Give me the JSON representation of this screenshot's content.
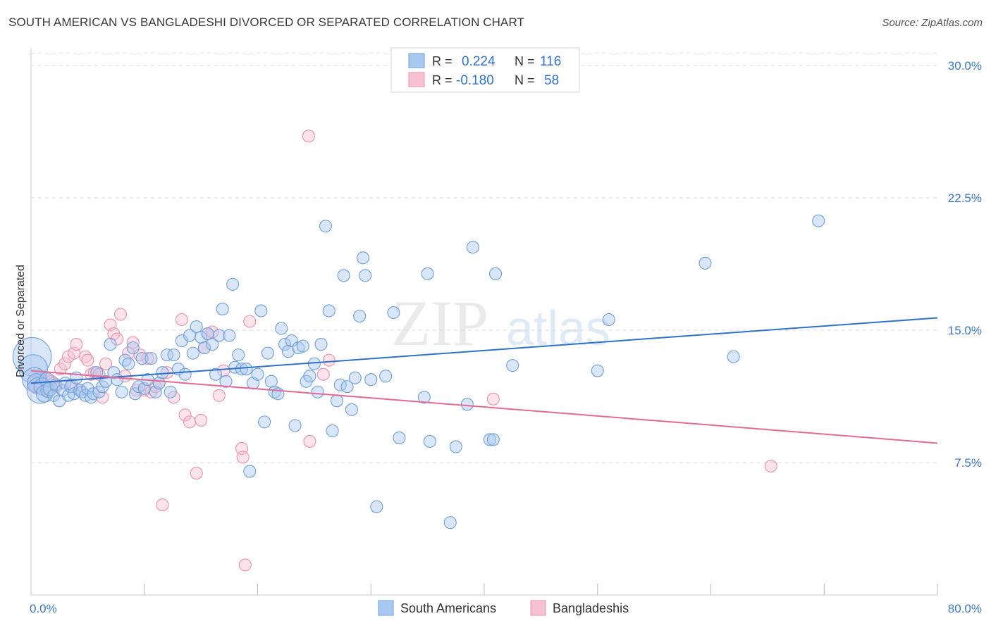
{
  "header": {
    "title": "SOUTH AMERICAN VS BANGLADESHI DIVORCED OR SEPARATED CORRELATION CHART",
    "source": "Source: ZipAtlas.com"
  },
  "watermark": {
    "zip": "ZIP",
    "atlas": "atlas"
  },
  "stats": [
    {
      "r_label": "R =",
      "r_value": "0.224",
      "n_label": "N =",
      "n_value": "116"
    },
    {
      "r_label": "R =",
      "r_value": "-0.180",
      "n_label": "N =",
      "n_value": "58"
    }
  ],
  "chart_data": {
    "type": "scatter",
    "xlabel": "",
    "ylabel": "Divorced or Separated",
    "xlim": [
      0,
      80
    ],
    "ylim": [
      0,
      31
    ],
    "x_tick_labels": [
      "0.0%",
      "80.0%"
    ],
    "y_ticks": [
      7.5,
      15,
      22.5,
      30
    ],
    "y_tick_labels": [
      "7.5%",
      "15.0%",
      "22.5%",
      "30.0%"
    ],
    "grid": true,
    "legend": [
      "South Americans",
      "Bangladeshis"
    ],
    "colors": {
      "south_fill": "#a9c8f0",
      "south_stroke": "#6f9fd8",
      "south_line": "#2f72cc",
      "bangla_fill": "#f7c0d3",
      "bangla_stroke": "#ea90b0",
      "bangla_line": "#e46a94",
      "tick_text": "#3b78c9"
    },
    "series": [
      {
        "name": "South Americans",
        "trend": {
          "x": [
            0,
            80
          ],
          "y": [
            12.0,
            15.7
          ]
        },
        "points": [
          [
            0.1,
            13.5,
            32
          ],
          [
            0.2,
            12.8,
            24
          ],
          [
            0.3,
            12.2,
            20
          ],
          [
            0.5,
            12.0,
            16
          ],
          [
            0.8,
            11.6,
            22
          ],
          [
            1.0,
            11.8,
            14
          ],
          [
            1.2,
            11.4,
            14
          ],
          [
            1.4,
            12.2,
            12
          ],
          [
            1.5,
            11.6,
            12
          ],
          [
            1.7,
            11.7,
            12
          ],
          [
            2.0,
            11.3,
            10
          ],
          [
            2.2,
            11.9,
            10
          ],
          [
            2.5,
            11.0,
            10
          ],
          [
            2.8,
            11.6,
            10
          ],
          [
            3.0,
            12.0,
            10
          ],
          [
            3.3,
            11.3,
            10
          ],
          [
            3.5,
            11.8,
            10
          ],
          [
            3.8,
            11.4,
            10
          ],
          [
            4.0,
            12.3,
            10
          ],
          [
            4.3,
            11.6,
            10
          ],
          [
            4.5,
            11.5,
            10
          ],
          [
            4.8,
            11.3,
            10
          ],
          [
            5.0,
            11.7,
            10
          ],
          [
            5.3,
            11.2,
            10
          ],
          [
            5.5,
            11.4,
            10
          ],
          [
            5.8,
            12.6,
            10
          ],
          [
            6.0,
            11.5,
            10
          ],
          [
            6.3,
            11.8,
            10
          ],
          [
            6.6,
            12.1,
            10
          ],
          [
            7.0,
            14.2,
            10
          ],
          [
            7.3,
            12.6,
            10
          ],
          [
            7.6,
            12.2,
            10
          ],
          [
            8.0,
            11.5,
            10
          ],
          [
            8.3,
            13.3,
            10
          ],
          [
            8.6,
            13.1,
            10
          ],
          [
            9.0,
            14.0,
            10
          ],
          [
            9.2,
            11.4,
            10
          ],
          [
            9.5,
            11.8,
            10
          ],
          [
            9.8,
            13.4,
            10
          ],
          [
            10.0,
            11.7,
            10
          ],
          [
            10.3,
            12.2,
            10
          ],
          [
            10.6,
            13.4,
            10
          ],
          [
            11.0,
            11.5,
            10
          ],
          [
            11.3,
            12.0,
            10
          ],
          [
            11.6,
            12.6,
            10
          ],
          [
            12.0,
            13.6,
            10
          ],
          [
            12.3,
            11.5,
            10
          ],
          [
            12.6,
            13.6,
            10
          ],
          [
            13.0,
            12.8,
            10
          ],
          [
            13.3,
            14.4,
            10
          ],
          [
            13.6,
            12.5,
            10
          ],
          [
            14.0,
            14.7,
            10
          ],
          [
            14.3,
            13.7,
            10
          ],
          [
            14.6,
            15.2,
            10
          ],
          [
            15.0,
            14.6,
            10
          ],
          [
            15.3,
            14.0,
            10
          ],
          [
            15.6,
            14.8,
            10
          ],
          [
            16.0,
            14.2,
            10
          ],
          [
            16.3,
            12.5,
            10
          ],
          [
            16.6,
            14.7,
            10
          ],
          [
            16.9,
            16.2,
            10
          ],
          [
            17.2,
            12.1,
            10
          ],
          [
            17.5,
            14.7,
            10
          ],
          [
            17.8,
            17.6,
            10
          ],
          [
            18.0,
            12.9,
            10
          ],
          [
            18.3,
            13.6,
            10
          ],
          [
            18.6,
            12.8,
            10
          ],
          [
            19.0,
            12.8,
            10
          ],
          [
            19.3,
            7.0,
            10
          ],
          [
            19.6,
            12.0,
            10
          ],
          [
            20.0,
            12.5,
            10
          ],
          [
            20.3,
            16.1,
            10
          ],
          [
            20.6,
            9.8,
            10
          ],
          [
            20.9,
            13.7,
            10
          ],
          [
            21.2,
            12.1,
            10
          ],
          [
            21.5,
            11.5,
            10
          ],
          [
            21.8,
            11.4,
            10
          ],
          [
            22.1,
            15.1,
            10
          ],
          [
            22.4,
            14.2,
            10
          ],
          [
            22.7,
            13.8,
            10
          ],
          [
            23.0,
            14.4,
            10
          ],
          [
            23.3,
            9.6,
            10
          ],
          [
            23.6,
            14.0,
            10
          ],
          [
            24.0,
            14.1,
            10
          ],
          [
            24.3,
            12.1,
            10
          ],
          [
            24.6,
            12.4,
            10
          ],
          [
            25.0,
            13.1,
            10
          ],
          [
            25.3,
            11.5,
            10
          ],
          [
            25.6,
            14.2,
            10
          ],
          [
            26.0,
            20.9,
            10
          ],
          [
            26.3,
            16.1,
            10
          ],
          [
            26.6,
            9.3,
            10
          ],
          [
            27.0,
            11.0,
            10
          ],
          [
            27.3,
            11.9,
            10
          ],
          [
            27.6,
            18.1,
            10
          ],
          [
            27.9,
            11.8,
            10
          ],
          [
            28.3,
            10.5,
            10
          ],
          [
            28.6,
            12.3,
            10
          ],
          [
            29.0,
            15.8,
            10
          ],
          [
            29.3,
            19.1,
            10
          ],
          [
            29.5,
            18.1,
            10
          ],
          [
            30.0,
            12.2,
            10
          ],
          [
            30.5,
            5.0,
            10
          ],
          [
            31.3,
            12.4,
            10
          ],
          [
            32.0,
            16.0,
            10
          ],
          [
            32.5,
            8.9,
            10
          ],
          [
            34.7,
            11.2,
            10
          ],
          [
            35.0,
            18.2,
            10
          ],
          [
            35.2,
            8.7,
            10
          ],
          [
            37.0,
            4.1,
            10
          ],
          [
            37.5,
            8.4,
            10
          ],
          [
            38.5,
            10.8,
            10
          ],
          [
            39.0,
            19.7,
            10
          ],
          [
            40.5,
            8.8,
            10
          ],
          [
            40.8,
            8.8,
            10
          ],
          [
            41.0,
            18.2,
            10
          ],
          [
            42.5,
            13.0,
            10
          ],
          [
            50.0,
            12.7,
            10
          ],
          [
            51.0,
            15.6,
            10
          ],
          [
            59.5,
            18.8,
            10
          ],
          [
            62.0,
            13.5,
            10
          ],
          [
            69.5,
            21.2,
            10
          ]
        ]
      },
      {
        "name": "Bangladeshis",
        "trend": {
          "x": [
            0,
            80
          ],
          "y": [
            12.7,
            8.6
          ]
        },
        "points": [
          [
            0.3,
            12.0,
            12
          ],
          [
            0.5,
            11.8,
            12
          ],
          [
            0.8,
            12.3,
            12
          ],
          [
            1.0,
            11.9,
            12
          ],
          [
            1.2,
            12.2,
            12
          ],
          [
            1.5,
            11.5,
            10
          ],
          [
            1.8,
            12.1,
            10
          ],
          [
            2.0,
            12.0,
            10
          ],
          [
            2.2,
            11.8,
            10
          ],
          [
            2.6,
            12.8,
            10
          ],
          [
            3.0,
            13.1,
            10
          ],
          [
            3.3,
            13.5,
            10
          ],
          [
            3.6,
            11.9,
            10
          ],
          [
            3.8,
            13.7,
            10
          ],
          [
            4.0,
            14.2,
            10
          ],
          [
            4.3,
            11.6,
            10
          ],
          [
            4.8,
            13.5,
            10
          ],
          [
            5.0,
            13.3,
            10
          ],
          [
            5.3,
            12.5,
            10
          ],
          [
            5.6,
            12.6,
            10
          ],
          [
            6.0,
            12.5,
            10
          ],
          [
            6.3,
            11.2,
            10
          ],
          [
            6.6,
            13.1,
            10
          ],
          [
            7.0,
            15.3,
            10
          ],
          [
            7.3,
            14.8,
            10
          ],
          [
            7.6,
            14.5,
            10
          ],
          [
            7.9,
            15.9,
            10
          ],
          [
            8.3,
            12.4,
            10
          ],
          [
            8.6,
            13.7,
            10
          ],
          [
            9.0,
            14.3,
            10
          ],
          [
            9.3,
            11.6,
            10
          ],
          [
            9.6,
            13.6,
            10
          ],
          [
            10.0,
            11.6,
            10
          ],
          [
            10.3,
            13.4,
            10
          ],
          [
            10.6,
            11.5,
            10
          ],
          [
            11.0,
            11.8,
            10
          ],
          [
            11.3,
            12.0,
            10
          ],
          [
            11.6,
            5.1,
            10
          ],
          [
            12.0,
            12.6,
            10
          ],
          [
            12.6,
            11.2,
            10
          ],
          [
            13.3,
            15.6,
            10
          ],
          [
            13.6,
            10.2,
            10
          ],
          [
            14.0,
            9.8,
            10
          ],
          [
            14.6,
            6.9,
            10
          ],
          [
            15.0,
            9.9,
            10
          ],
          [
            15.3,
            14.0,
            10
          ],
          [
            15.6,
            14.8,
            10
          ],
          [
            16.0,
            14.9,
            10
          ],
          [
            16.6,
            11.3,
            10
          ],
          [
            17.0,
            12.7,
            10
          ],
          [
            18.6,
            8.3,
            10
          ],
          [
            18.7,
            7.8,
            10
          ],
          [
            18.9,
            1.7,
            10
          ],
          [
            19.3,
            15.5,
            10
          ],
          [
            24.6,
            8.7,
            10
          ],
          [
            25.8,
            12.5,
            10
          ],
          [
            26.3,
            13.3,
            10
          ],
          [
            24.5,
            26.0,
            10
          ],
          [
            40.8,
            11.1,
            10
          ],
          [
            65.3,
            7.3,
            10
          ]
        ]
      }
    ]
  }
}
